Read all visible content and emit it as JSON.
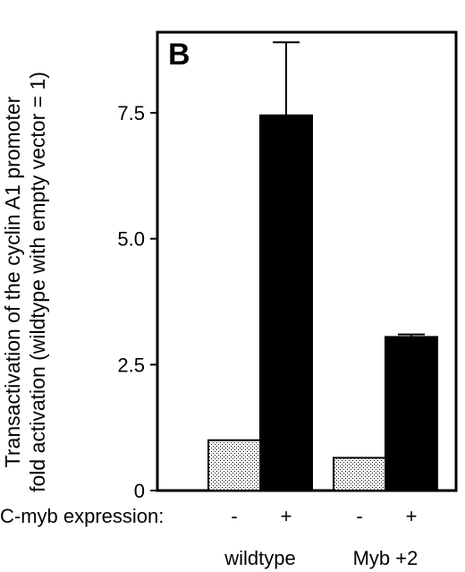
{
  "chart_data": {
    "type": "bar",
    "panel_label": "B",
    "ylabel_line1": "Transactivation of the cyclin A1 promoter",
    "ylabel_line2": "fold activation (wildtype with empty vector = 1)",
    "yticks": [
      "0",
      "2.5",
      "5.0",
      "7.5"
    ],
    "ylim": [
      0,
      9.1
    ],
    "row_label": "C-myb expression:",
    "groups": [
      {
        "name": "wildtype",
        "bars": [
          {
            "expression": "-",
            "value": 1.0,
            "error": 0,
            "fill": "stippled"
          },
          {
            "expression": "+",
            "value": 7.45,
            "error": 1.45,
            "fill": "black"
          }
        ]
      },
      {
        "name": "Myb +2",
        "bars": [
          {
            "expression": "-",
            "value": 0.65,
            "error": 0,
            "fill": "stippled"
          },
          {
            "expression": "+",
            "value": 3.05,
            "error": 0.05,
            "fill": "black"
          }
        ]
      }
    ]
  }
}
